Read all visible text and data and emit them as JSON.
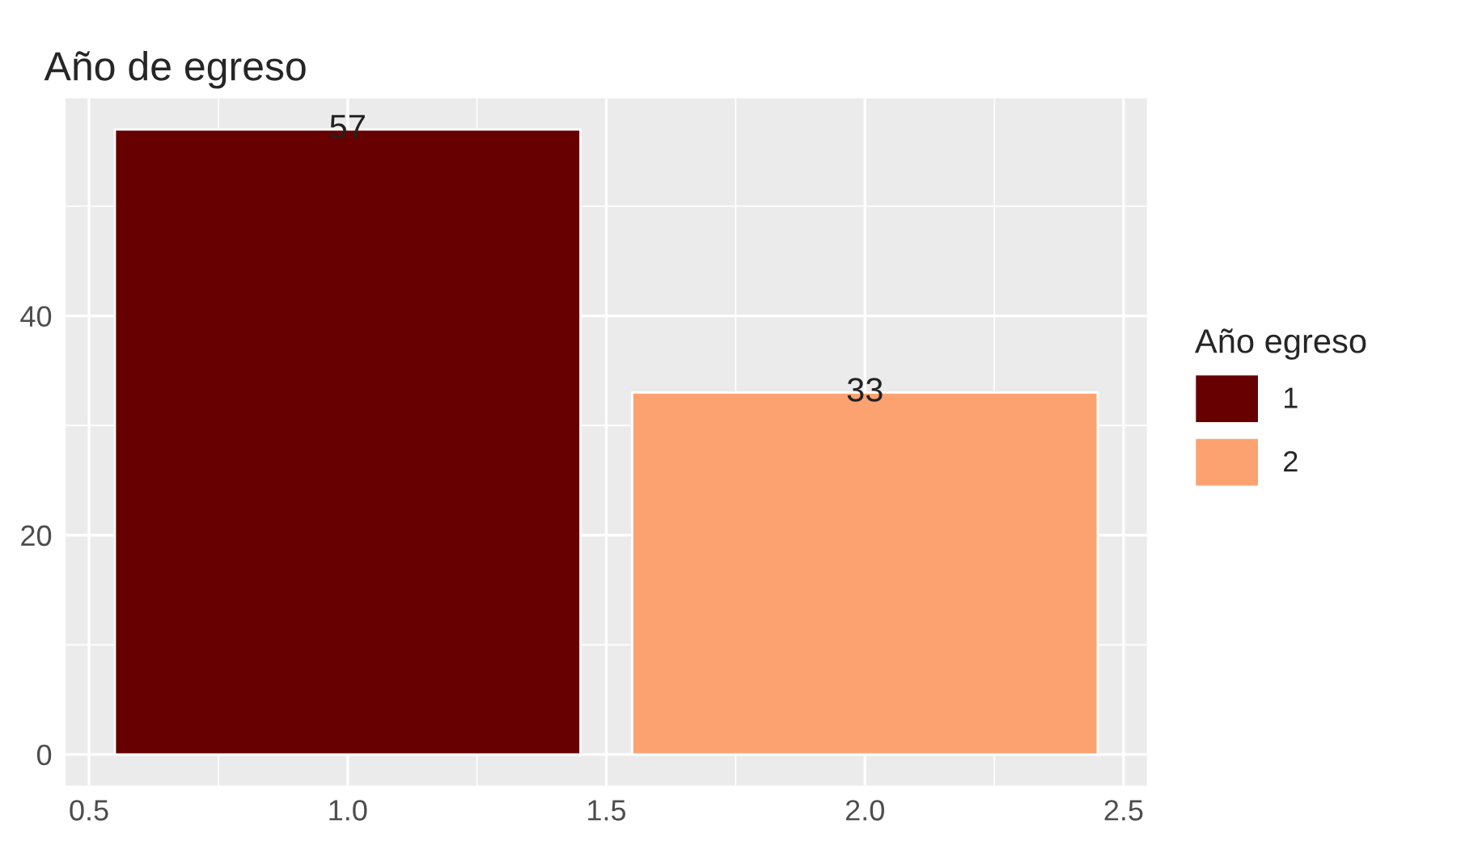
{
  "chart_data": {
    "type": "bar",
    "title": "Año de egreso",
    "legend_title": "Año egreso",
    "series": [
      {
        "name": "1",
        "color": "#670000",
        "x": [
          1
        ],
        "values": [
          57
        ]
      },
      {
        "name": "2",
        "color": "#fca271",
        "x": [
          2
        ],
        "values": [
          33
        ]
      }
    ],
    "xlim": [
      0.455,
      2.545
    ],
    "xticks": [
      {
        "value": 0.5,
        "label": "0.5"
      },
      {
        "value": 1.0,
        "label": "1.0"
      },
      {
        "value": 1.5,
        "label": "1.5"
      },
      {
        "value": 2.0,
        "label": "2.0"
      },
      {
        "value": 2.5,
        "label": "2.5"
      }
    ],
    "ylim": [
      -2.85,
      59.85
    ],
    "yticks": [
      0,
      20,
      40
    ],
    "grid": true,
    "legend": "right",
    "data_labels": true
  }
}
